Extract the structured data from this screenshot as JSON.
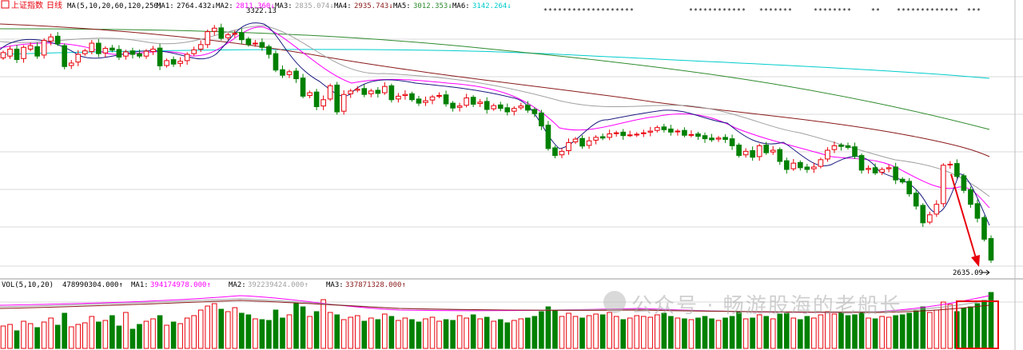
{
  "header": {
    "index_name": "上证指数",
    "period": "日线",
    "ma_spec": "MA(5,10,20,60,120,250)",
    "ma_items": [
      {
        "label": "MA1:",
        "value": "2764.432↓",
        "color": "#000000"
      },
      {
        "label": "MA2:",
        "value": "2811.360↓",
        "color": "#ff00ff"
      },
      {
        "label": "MA3:",
        "value": "2835.074↓",
        "color": "#a0a0a0"
      },
      {
        "label": "MA4:",
        "value": "2935.743↓",
        "color": "#8b1a1a"
      },
      {
        "label": "MA5:",
        "value": "3012.353↓",
        "color": "#2e8b2e"
      },
      {
        "label": "MA6:",
        "value": "3142.264↓",
        "color": "#00cccc"
      }
    ]
  },
  "volume_header": {
    "spec": "VOL(5,10,20)",
    "value": "478990304.000↑",
    "items": [
      {
        "label": "MA1:",
        "value": "394174978.000↑",
        "color": "#ff00ff"
      },
      {
        "label": "MA2:",
        "value": "392239424.000↑",
        "color": "#a0a0a0"
      },
      {
        "label": "MA3:",
        "value": "337871328.000↑",
        "color": "#8b1a1a"
      }
    ]
  },
  "annotations": {
    "high_label": "3322.13",
    "low_label": "2635.09"
  },
  "watermark": "公众号 · 畅游股海的老船长",
  "colors": {
    "up": "#e8000b",
    "down": "#008000",
    "highlight": "#e8000b",
    "arrow": "#e8000b"
  },
  "chart_data": {
    "type": "candlestick",
    "price_range": [
      2600,
      3340
    ],
    "high_point": 3322.13,
    "low_point": 2635.09,
    "ma_lines": [
      {
        "name": "MA1",
        "period": 5,
        "last": 2764.432
      },
      {
        "name": "MA2",
        "period": 10,
        "last": 2811.36
      },
      {
        "name": "MA3",
        "period": 20,
        "last": 2835.074
      },
      {
        "name": "MA4",
        "period": 60,
        "last": 2935.743
      },
      {
        "name": "MA5",
        "period": 120,
        "last": 3012.353
      },
      {
        "name": "MA6",
        "period": 250,
        "last": 3142.264
      }
    ],
    "closes": [
      3235,
      3245,
      3215,
      3250,
      3255,
      3225,
      3270,
      3280,
      3260,
      3195,
      3205,
      3230,
      3240,
      3262,
      3232,
      3247,
      3242,
      3222,
      3237,
      3230,
      3225,
      3239,
      3245,
      3197,
      3212,
      3202,
      3210,
      3230,
      3243,
      3258,
      3295,
      3305,
      3276,
      3286,
      3290,
      3272,
      3258,
      3262,
      3250,
      3230,
      3185,
      3170,
      3180,
      3160,
      3110,
      3120,
      3080,
      3100,
      3140,
      3065,
      3115,
      3125,
      3130,
      3115,
      3125,
      3118,
      3138,
      3100,
      3110,
      3115,
      3100,
      3090,
      3097,
      3108,
      3112,
      3088,
      3076,
      3082,
      3105,
      3087,
      3093,
      3072,
      3083,
      3075,
      3065,
      3075,
      3082,
      3070,
      3060,
      3025,
      2960,
      2940,
      2952,
      2977,
      2987,
      2967,
      2982,
      2992,
      2990,
      3002,
      3005,
      2997,
      2999,
      3001,
      3005,
      3010,
      3020,
      3014,
      3007,
      3010,
      2998,
      3000,
      2995,
      2988,
      2985,
      2990,
      2986,
      2968,
      2940,
      2952,
      2935,
      2968,
      2948,
      2955,
      2923,
      2900,
      2918,
      2905,
      2900,
      2907,
      2928,
      2955,
      2968,
      2966,
      2963,
      2938,
      2898,
      2903,
      2890,
      2900,
      2905,
      2870,
      2864,
      2830,
      2795,
      2747,
      2770,
      2800,
      2912,
      2915,
      2880,
      2840,
      2800,
      2760,
      2700,
      2640
    ],
    "opens": [
      3220,
      3225,
      3245,
      3218,
      3245,
      3252,
      3228,
      3268,
      3282,
      3255,
      3198,
      3208,
      3232,
      3238,
      3262,
      3234,
      3248,
      3244,
      3225,
      3240,
      3232,
      3225,
      3238,
      3248,
      3198,
      3215,
      3204,
      3212,
      3232,
      3245,
      3258,
      3296,
      3306,
      3278,
      3288,
      3292,
      3274,
      3260,
      3264,
      3252,
      3232,
      3186,
      3172,
      3182,
      3162,
      3112,
      3122,
      3082,
      3102,
      3142,
      3067,
      3117,
      3127,
      3132,
      3117,
      3127,
      3120,
      3140,
      3102,
      3112,
      3117,
      3102,
      3092,
      3099,
      3110,
      3114,
      3090,
      3078,
      3084,
      3107,
      3089,
      3095,
      3074,
      3085,
      3077,
      3067,
      3077,
      3084,
      3072,
      3062,
      3027,
      2962,
      2942,
      2954,
      2979,
      2989,
      2969,
      2984,
      2994,
      2992,
      3004,
      3007,
      2999,
      3001,
      3003,
      3007,
      3012,
      3022,
      3016,
      3009,
      3012,
      3000,
      3002,
      2997,
      2990,
      2987,
      2992,
      2988,
      2970,
      2942,
      2954,
      2937,
      2970,
      2950,
      2957,
      2925,
      2902,
      2920,
      2907,
      2902,
      2909,
      2930,
      2957,
      2970,
      2968,
      2965,
      2940,
      2900,
      2905,
      2892,
      2902,
      2907,
      2872,
      2866,
      2832,
      2797,
      2749,
      2772,
      2802,
      2914,
      2917,
      2882,
      2842,
      2802,
      2762,
      2702
    ],
    "volumes": [
      28,
      30,
      22,
      34,
      31,
      26,
      33,
      38,
      29,
      44,
      27,
      30,
      32,
      40,
      33,
      35,
      41,
      28,
      45,
      24,
      30,
      34,
      37,
      41,
      29,
      33,
      31,
      38,
      41,
      48,
      53,
      56,
      49,
      46,
      51,
      44,
      42,
      37,
      36,
      35,
      48,
      38,
      42,
      56,
      52,
      40,
      46,
      61,
      45,
      42,
      36,
      39,
      41,
      34,
      38,
      36,
      43,
      40,
      35,
      38,
      36,
      33,
      37,
      39,
      34,
      36,
      35,
      41,
      38,
      42,
      37,
      39,
      34,
      36,
      32,
      35,
      37,
      38,
      40,
      46,
      52,
      48,
      40,
      44,
      40,
      38,
      41,
      43,
      42,
      45,
      40,
      36,
      38,
      41,
      40,
      39,
      42,
      44,
      40,
      38,
      37,
      36,
      38,
      40,
      37,
      35,
      38,
      40,
      45,
      37,
      38,
      42,
      40,
      37,
      43,
      44,
      38,
      36,
      40,
      38,
      42,
      46,
      43,
      44,
      41,
      42,
      45,
      38,
      37,
      40,
      39,
      41,
      42,
      44,
      47,
      52,
      45,
      48,
      58,
      55,
      46,
      50,
      52,
      56,
      60,
      70
    ]
  }
}
